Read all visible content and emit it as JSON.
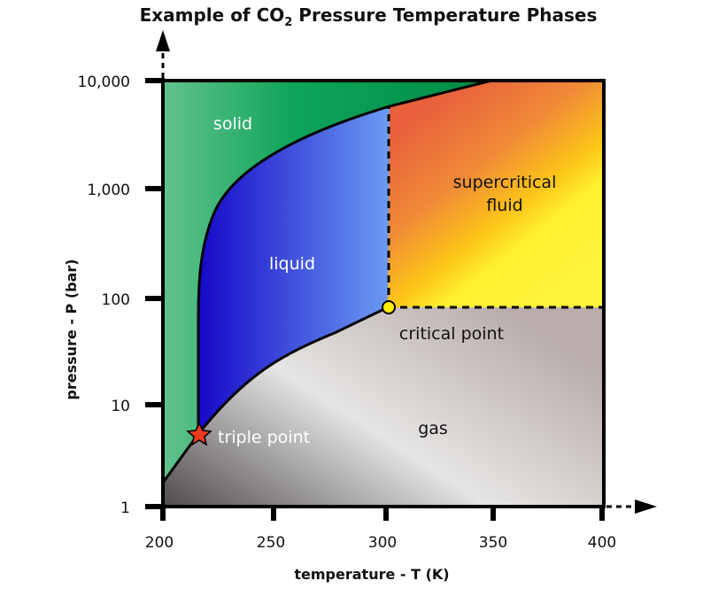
{
  "chart_data": {
    "type": "phase-diagram",
    "title": "Example of CO",
    "title_sub": "2",
    "title_rest": " Pressure Temperature Phases",
    "xlabel": "temperature - T (K)",
    "ylabel": "pressure - P (bar)",
    "xlim": [
      200,
      400
    ],
    "ylim": [
      1,
      10000
    ],
    "yscale": "log",
    "xticks": [
      "200",
      "250",
      "300",
      "350",
      "400"
    ],
    "yticks": [
      "1",
      "10",
      "100",
      "1,000",
      "10,000"
    ],
    "regions": {
      "solid": "solid",
      "liquid": "liquid",
      "supercritical_1": "supercritical",
      "supercritical_2": "fluid",
      "gas": "gas"
    },
    "points": {
      "triple": {
        "label": "triple point",
        "T": 216.6,
        "P": 5.2
      },
      "critical": {
        "label": "critical point",
        "T": 304,
        "P": 74
      }
    },
    "colors": {
      "solid": "#00a050",
      "liquid": "#2a2ad8",
      "supercritical": "#f07a30",
      "gas": "#a8a2a2",
      "critical_marker": "#ffee00",
      "triple_marker": "#e83a1e"
    }
  }
}
